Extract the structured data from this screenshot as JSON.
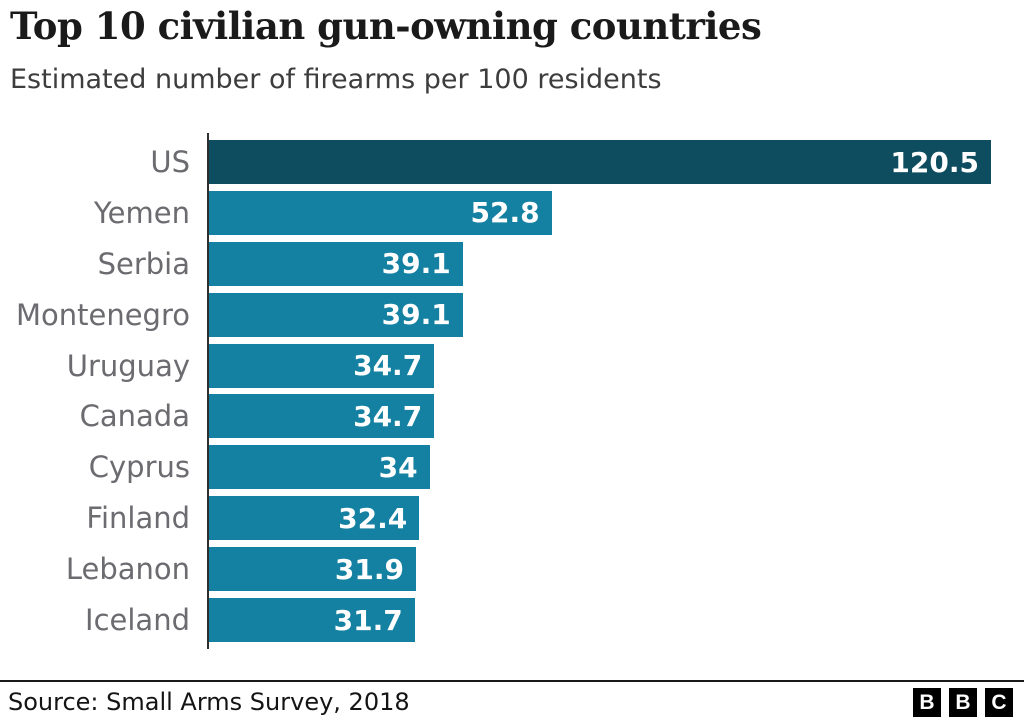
{
  "header": {
    "title": "Top 10 civilian gun-owning countries",
    "subtitle": "Estimated number of firearms per 100 residents"
  },
  "chart_data": {
    "type": "bar",
    "orientation": "horizontal",
    "title": "Top 10 civilian gun-owning countries",
    "subtitle": "Estimated number of firearms per 100 residents",
    "categories": [
      "US",
      "Yemen",
      "Serbia",
      "Montenegro",
      "Uruguay",
      "Canada",
      "Cyprus",
      "Finland",
      "Lebanon",
      "Iceland"
    ],
    "values": [
      120.5,
      52.8,
      39.1,
      39.1,
      34.7,
      34.7,
      34,
      32.4,
      31.9,
      31.7
    ],
    "value_labels": [
      "120.5",
      "52.8",
      "39.1",
      "39.1",
      "34.7",
      "34.7",
      "34",
      "32.4",
      "31.9",
      "31.7"
    ],
    "xlabel": "Estimated number of firearms per 100 residents",
    "ylabel": "",
    "xlim": [
      0,
      124
    ],
    "grid": false,
    "legend": false,
    "highlight_index": 0,
    "colors": {
      "bar": "#1481a2",
      "highlight_bar": "#0d4d5f",
      "value_text": "#ffffff",
      "category_text": "#6b6b70",
      "axis_line": "#2e2e2e"
    }
  },
  "footer": {
    "source": "Source: Small Arms Survey, 2018",
    "logo_letters": [
      "B",
      "B",
      "C"
    ]
  }
}
